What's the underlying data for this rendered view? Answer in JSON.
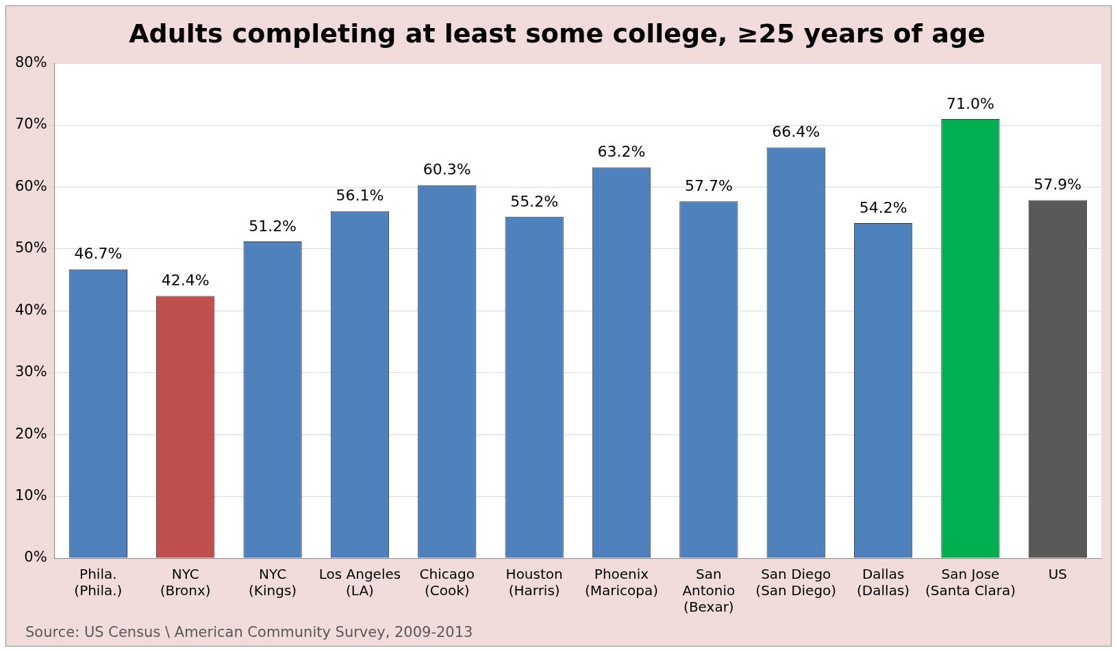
{
  "chart_data": {
    "type": "bar",
    "title": "Adults completing at least some college, ≥25 years of age",
    "categories": [
      "Phila.\n(Phila.)",
      "NYC\n(Bronx)",
      "NYC\n(Kings)",
      "Los Angeles\n(LA)",
      "Chicago\n(Cook)",
      "Houston\n(Harris)",
      "Phoenix\n(Maricopa)",
      "San\nAntonio\n(Bexar)",
      "San Diego\n(San Diego)",
      "Dallas\n(Dallas)",
      "San Jose\n(Santa Clara)",
      "US"
    ],
    "values": [
      46.7,
      42.4,
      51.2,
      56.1,
      60.3,
      55.2,
      63.2,
      57.7,
      66.4,
      54.2,
      71.0,
      57.9
    ],
    "colors": [
      "#4f81bd",
      "#c0504d",
      "#4f81bd",
      "#4f81bd",
      "#4f81bd",
      "#4f81bd",
      "#4f81bd",
      "#4f81bd",
      "#4f81bd",
      "#4f81bd",
      "#00b050",
      "#595959"
    ],
    "value_labels": [
      "46.7%",
      "42.4%",
      "51.2%",
      "56.1%",
      "60.3%",
      "55.2%",
      "63.2%",
      "57.7%",
      "66.4%",
      "54.2%",
      "71.0%",
      "57.9%"
    ],
    "ylim": [
      0,
      80
    ],
    "yticks": [
      {
        "value": 0,
        "label": "0%"
      },
      {
        "value": 10,
        "label": "10%"
      },
      {
        "value": 20,
        "label": "20%"
      },
      {
        "value": 30,
        "label": "30%"
      },
      {
        "value": 40,
        "label": "40%"
      },
      {
        "value": 50,
        "label": "50%"
      },
      {
        "value": 60,
        "label": "60%"
      },
      {
        "value": 70,
        "label": "70%"
      },
      {
        "value": 80,
        "label": "80%"
      }
    ],
    "grid": "y",
    "legend": false,
    "annotations": [
      "Source: US Census \\ American Community Survey, 2009-2013"
    ]
  }
}
